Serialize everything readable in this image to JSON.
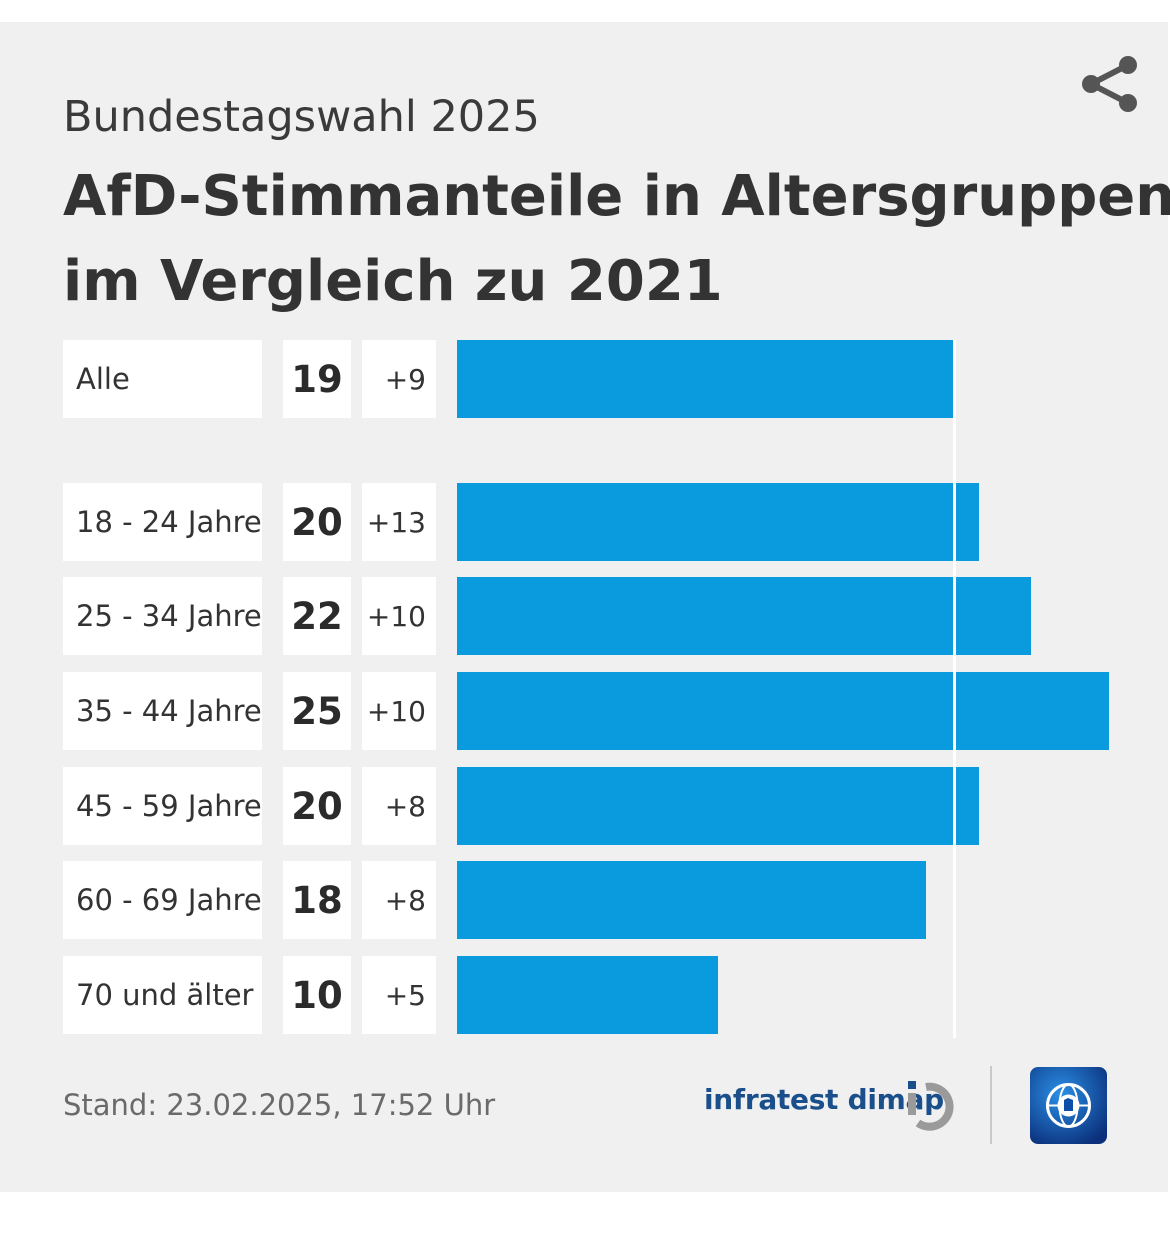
{
  "header": {
    "supertitle": "Bundestagswahl 2025",
    "title_line1": "AfD-Stimmanteile in Altersgruppen",
    "title_line2": "im Vergleich zu 2021"
  },
  "icons": {
    "share": "share-icon",
    "infratest": "infratest-dimap-logo",
    "broadcaster": "globe-logo"
  },
  "colors": {
    "bar": "#0a9ade",
    "background": "#f0f0f0",
    "cell": "#ffffff",
    "brand_text": "#1a4f8c"
  },
  "chart_data": {
    "type": "bar",
    "orientation": "horizontal",
    "title": "AfD-Stimmanteile in Altersgruppen im Vergleich zu 2021",
    "categories": [
      "Alle",
      "18 - 24 Jahre",
      "25 - 34 Jahre",
      "35 - 44 Jahre",
      "45 - 59 Jahre",
      "60 - 69 Jahre",
      "70 und älter"
    ],
    "values": [
      19,
      20,
      22,
      25,
      20,
      18,
      10
    ],
    "value_labels": [
      "19",
      "20",
      "22",
      "25",
      "20",
      "18",
      "10"
    ],
    "diff_labels": [
      "+9",
      "+13",
      "+10",
      "+10",
      "+8",
      "+8",
      "+5"
    ],
    "reference_line": 19,
    "xlim": [
      0,
      25
    ],
    "grid": false,
    "legend": "none"
  },
  "footer": {
    "stand": "Stand:  23.02.2025, 17:52 Uhr",
    "source": "infratest dimap"
  }
}
